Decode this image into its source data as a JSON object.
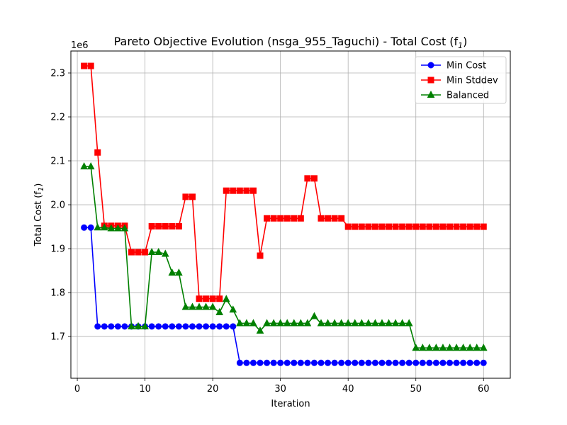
{
  "chart_data": {
    "type": "line",
    "title": "Pareto Objective Evolution (nsga_955_Taguchi) - Total Cost (f",
    "title_subscript": "1",
    "title_suffix": ")",
    "xlabel": "Iteration",
    "ylabel": "Total Cost (f",
    "ylabel_subscript": "1",
    "ylabel_suffix": ")",
    "y_offset_label": "1e6",
    "y_scale": 1000000,
    "xlim": [
      -0.95,
      63.95
    ],
    "ylim": [
      1605000,
      2350000
    ],
    "xticks": [
      0,
      10,
      20,
      30,
      40,
      50,
      60
    ],
    "yticks": [
      1700000,
      1800000,
      1900000,
      2000000,
      2100000,
      2200000,
      2300000
    ],
    "ytick_labels": [
      "1.7",
      "1.8",
      "1.9",
      "2.0",
      "2.1",
      "2.2",
      "2.3"
    ],
    "grid": true,
    "legend_position": "top-right",
    "x": [
      1,
      2,
      3,
      4,
      5,
      6,
      7,
      8,
      9,
      10,
      11,
      12,
      13,
      14,
      15,
      16,
      17,
      18,
      19,
      20,
      21,
      22,
      23,
      24,
      25,
      26,
      27,
      28,
      29,
      30,
      31,
      32,
      33,
      34,
      35,
      36,
      37,
      38,
      39,
      40,
      41,
      42,
      43,
      44,
      45,
      46,
      47,
      48,
      49,
      50,
      51,
      52,
      53,
      54,
      55,
      56,
      57,
      58,
      59,
      60
    ],
    "series": [
      {
        "name": "Min Cost",
        "color": "#0000ff",
        "marker": "circle",
        "values": [
          1948000,
          1948000,
          1723000,
          1723000,
          1723000,
          1723000,
          1723000,
          1723000,
          1723000,
          1723000,
          1723000,
          1723000,
          1723000,
          1723000,
          1723000,
          1723000,
          1723000,
          1723000,
          1723000,
          1723000,
          1723000,
          1723000,
          1723000,
          1640000,
          1640000,
          1640000,
          1640000,
          1640000,
          1640000,
          1640000,
          1640000,
          1640000,
          1640000,
          1640000,
          1640000,
          1640000,
          1640000,
          1640000,
          1640000,
          1640000,
          1640000,
          1640000,
          1640000,
          1640000,
          1640000,
          1640000,
          1640000,
          1640000,
          1640000,
          1640000,
          1640000,
          1640000,
          1640000,
          1640000,
          1640000,
          1640000,
          1640000,
          1640000,
          1640000,
          1640000
        ]
      },
      {
        "name": "Min Stddev",
        "color": "#ff0000",
        "marker": "square",
        "values": [
          2316000,
          2316000,
          2119000,
          1952000,
          1952000,
          1952000,
          1952000,
          1892000,
          1892000,
          1892000,
          1951000,
          1951000,
          1951000,
          1951000,
          1951000,
          2018000,
          2018000,
          1786000,
          1786000,
          1786000,
          1786000,
          2032000,
          2032000,
          2032000,
          2032000,
          2032000,
          1884000,
          1969000,
          1969000,
          1969000,
          1969000,
          1969000,
          1969000,
          2060000,
          2060000,
          1969000,
          1969000,
          1969000,
          1969000,
          1950000,
          1950000,
          1950000,
          1950000,
          1950000,
          1950000,
          1950000,
          1950000,
          1950000,
          1950000,
          1950000,
          1950000,
          1950000,
          1950000,
          1950000,
          1950000,
          1950000,
          1950000,
          1950000,
          1950000,
          1950000
        ]
      },
      {
        "name": "Balanced",
        "color": "#008000",
        "marker": "triangle",
        "values": [
          2087000,
          2087000,
          1948000,
          1948000,
          1946000,
          1946000,
          1946000,
          1723000,
          1723000,
          1723000,
          1892000,
          1892000,
          1888000,
          1845000,
          1845000,
          1767000,
          1767000,
          1767000,
          1767000,
          1767000,
          1755000,
          1785000,
          1761000,
          1730000,
          1730000,
          1730000,
          1713000,
          1730000,
          1730000,
          1730000,
          1730000,
          1730000,
          1730000,
          1730000,
          1746000,
          1730000,
          1730000,
          1730000,
          1730000,
          1730000,
          1730000,
          1730000,
          1730000,
          1730000,
          1730000,
          1730000,
          1730000,
          1730000,
          1730000,
          1674000,
          1674000,
          1674000,
          1674000,
          1674000,
          1674000,
          1674000,
          1674000,
          1674000,
          1674000,
          1674000
        ]
      }
    ]
  }
}
